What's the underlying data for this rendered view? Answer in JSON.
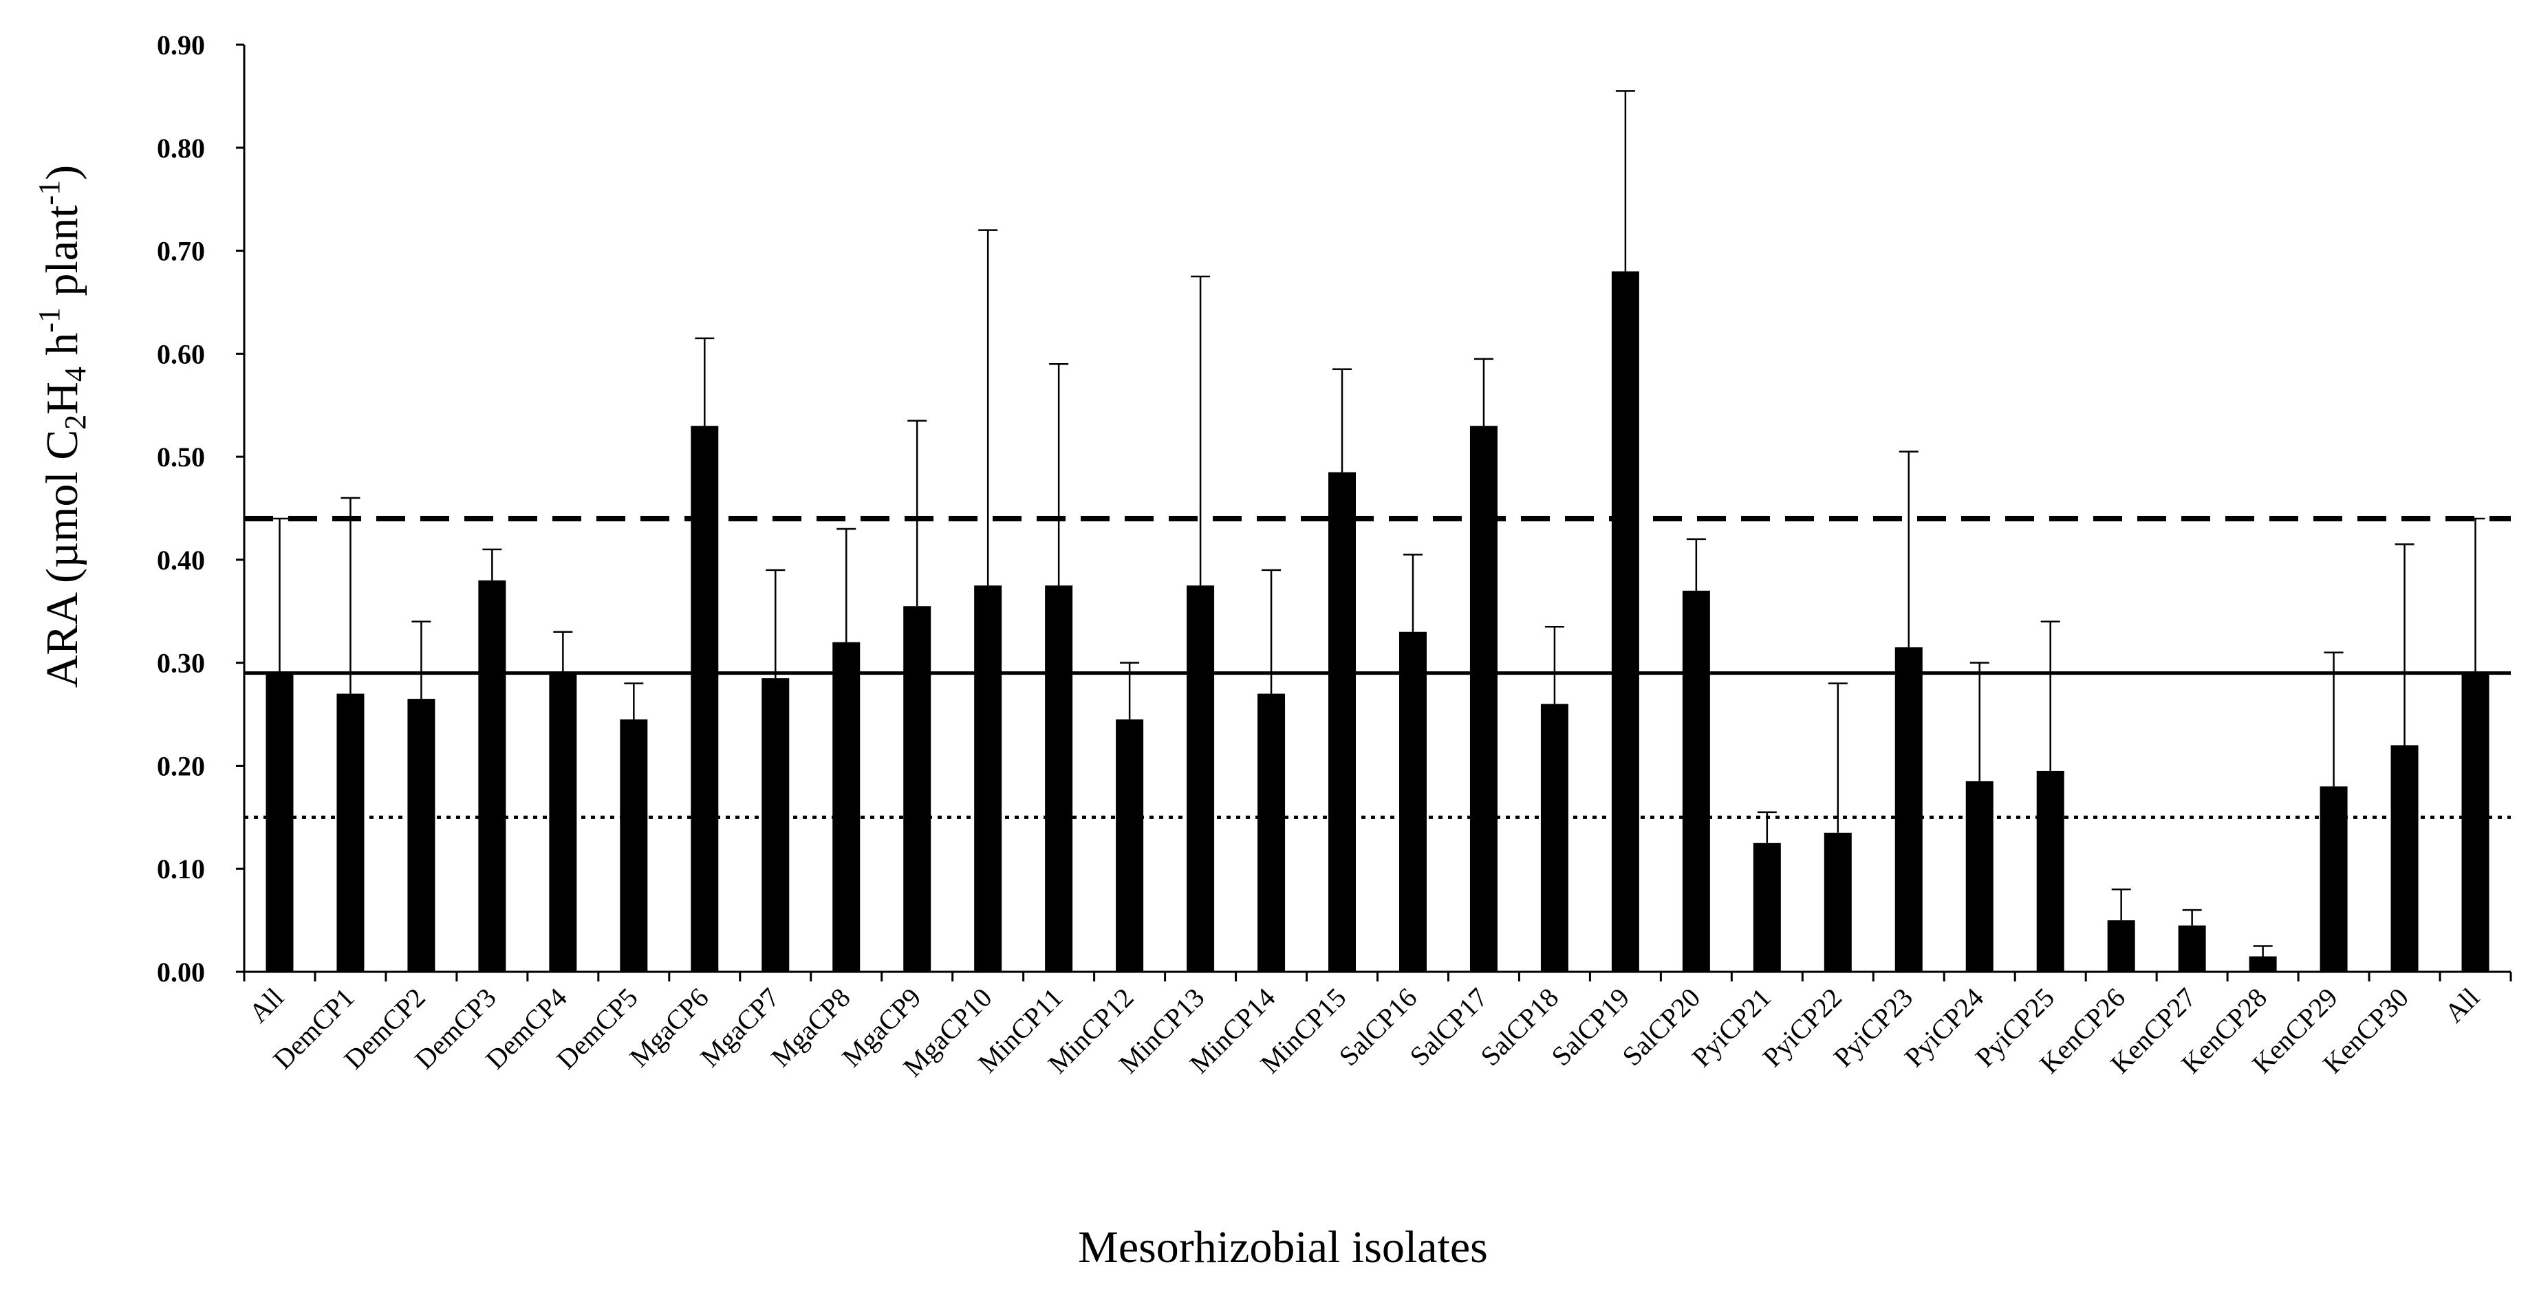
{
  "chart_data": {
    "type": "bar",
    "title": "",
    "xlabel": "Mesorhizobial isolates",
    "ylabel": "ARA (µmol C2H4 h-1 plant-1)",
    "ylabel_parts": {
      "prefix": "ARA (µmol C",
      "sub1": "2",
      "mid1": "H",
      "sub2": "4",
      "mid2": " h",
      "sup1": "-1",
      "mid3": " plant",
      "sup2": "-1",
      "suffix": ")"
    },
    "ylim": [
      0,
      0.9
    ],
    "yticks": [
      "0.00",
      "0.10",
      "0.20",
      "0.30",
      "0.40",
      "0.50",
      "0.60",
      "0.70",
      "0.80",
      "0.90"
    ],
    "categories": [
      "All",
      "DemCP1",
      "DemCP2",
      "DemCP3",
      "DemCP4",
      "DemCP5",
      "MgaCP6",
      "MgaCP7",
      "MgaCP8",
      "MgaCP9",
      "MgaCP10",
      "MinCP11",
      "MinCP12",
      "MinCP13",
      "MinCP14",
      "MinCP15",
      "SalCP16",
      "SalCP17",
      "SalCP18",
      "SalCP19",
      "SalCP20",
      "PyiCP21",
      "PyiCP22",
      "PyiCP23",
      "PyiCP24",
      "PyiCP25",
      "KenCP26",
      "KenCP27",
      "KenCP28",
      "KenCP29",
      "KenCP30",
      "All"
    ],
    "values": [
      0.29,
      0.27,
      0.265,
      0.38,
      0.29,
      0.245,
      0.53,
      0.285,
      0.32,
      0.355,
      0.375,
      0.375,
      0.245,
      0.375,
      0.27,
      0.485,
      0.33,
      0.53,
      0.26,
      0.68,
      0.37,
      0.125,
      0.135,
      0.315,
      0.185,
      0.195,
      0.05,
      0.045,
      0.015,
      0.18,
      0.22,
      0.29
    ],
    "error_upper": [
      0.44,
      0.46,
      0.34,
      0.41,
      0.33,
      0.28,
      0.615,
      0.39,
      0.43,
      0.535,
      0.72,
      0.59,
      0.3,
      0.675,
      0.39,
      0.585,
      0.405,
      0.595,
      0.335,
      0.855,
      0.42,
      0.155,
      0.28,
      0.505,
      0.3,
      0.34,
      0.08,
      0.06,
      0.025,
      0.31,
      0.415,
      0.44
    ],
    "reference_lines": [
      {
        "name": "upper",
        "value": 0.44,
        "style": "dashed"
      },
      {
        "name": "mean",
        "value": 0.29,
        "style": "solid"
      },
      {
        "name": "lower",
        "value": 0.15,
        "style": "dotted"
      }
    ],
    "grid": false,
    "legend": "none"
  }
}
